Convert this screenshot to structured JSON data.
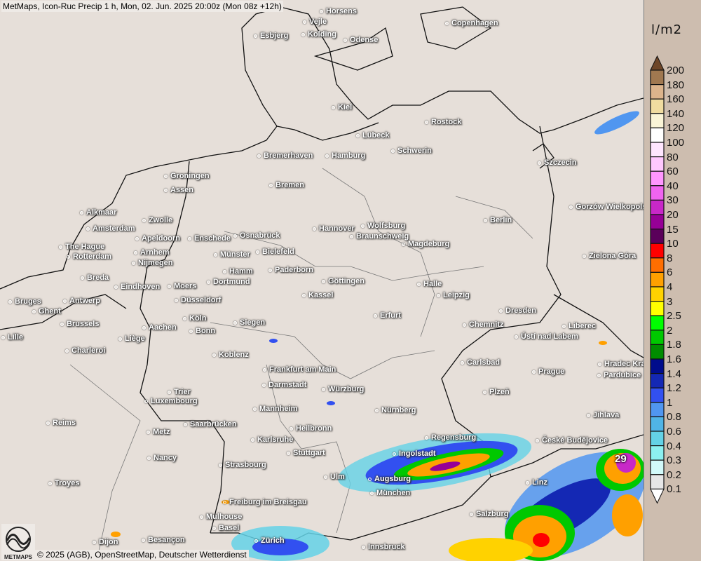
{
  "header": {
    "title": "MetMaps, Icon-Ruc Precip 1 h, Mon, 02. Jun. 2025 20:00z (Mon 08z +12h)"
  },
  "footer": {
    "copyright": "© 2025 (AGB), OpenStreetMap, Deutscher Wetterdienst",
    "logo_text": "METMAPS"
  },
  "map": {
    "max_value_label": "29",
    "cities": [
      "Horsens",
      "Vejle",
      "Kolding",
      "Esbjerg",
      "Odense",
      "Copenhagen",
      "Kiel",
      "Lübeck",
      "Rostock",
      "Schwerin",
      "Bremerhaven",
      "Hamburg",
      "Szczecin",
      "Groningen",
      "Assen",
      "Bremen",
      "Alkmaar",
      "Zwolle",
      "Gorzów Wielkopolski",
      "Amsterdam",
      "Apeldoorn",
      "Enschede",
      "Osnabrück",
      "Hannover",
      "Wolfsburg",
      "Braunschweig",
      "Berlin",
      "The Hague",
      "Rotterdam",
      "Arnhem",
      "Nijmegen",
      "Münster",
      "Bielefeld",
      "Magdeburg",
      "Zielona Góra",
      "Hamm",
      "Paderborn",
      "Dortmund",
      "Breda",
      "Eindhoven",
      "Moers",
      "Göttingen",
      "Halle",
      "Leipzig",
      "Kassel",
      "Bruges",
      "Antwerp",
      "Ghent",
      "Düsseldorf",
      "Dresden",
      "Erfurt",
      "Köln",
      "Brussels",
      "Siegen",
      "Bonn",
      "Chemnitz",
      "Liberec",
      "Aachen",
      "Liège",
      "Lille",
      "Ústí nad Labem",
      "Charleroi",
      "Koblenz",
      "Carlsbad",
      "Hradec Králové",
      "Frankfurt am Main",
      "Prague",
      "Pardubice",
      "Darmstadt",
      "Würzburg",
      "Trier",
      "Plzeň",
      "Luxembourg",
      "Mannheim",
      "Nürnberg",
      "Jihlava",
      "Reims",
      "Saarbrücken",
      "Metz",
      "Heilbronn",
      "Regensburg",
      "České Budějovice",
      "Karlsruhe",
      "Stuttgart",
      "Ingolstadt",
      "Nancy",
      "Strasbourg",
      "Ulm",
      "Augsburg",
      "Linz",
      "Troyes",
      "München",
      "Freiburg im Breisgau",
      "Salzburg",
      "Mulhouse",
      "Basel",
      "Zürich",
      "Innsbruck",
      "Dijon",
      "Besançon"
    ]
  },
  "legend": {
    "unit": "l/m2",
    "labels": [
      "200",
      "180",
      "160",
      "140",
      "120",
      "100",
      "80",
      "60",
      "40",
      "30",
      "20",
      "15",
      "10",
      "8",
      "6",
      "4",
      "3",
      "2.5",
      "2",
      "1.8",
      "1.6",
      "1.4",
      "1.2",
      "1",
      "0.8",
      "0.6",
      "0.4",
      "0.3",
      "0.2",
      "0.1"
    ],
    "colors": [
      "#a07850",
      "#dcb48c",
      "#f0dca0",
      "#faf5d7",
      "#ffffff",
      "#ffe6ff",
      "#ffc8ff",
      "#ff96ff",
      "#f064f0",
      "#c828c8",
      "#960096",
      "#5a005a",
      "#ff0000",
      "#ff6e00",
      "#ffa000",
      "#ffd200",
      "#ffff00",
      "#00ff00",
      "#00c800",
      "#008c00",
      "#000c8c",
      "#1428b4",
      "#3250f0",
      "#5096f0",
      "#50b4e6",
      "#64d2e6",
      "#8cf0f0",
      "#d2fafa",
      "#e6e6e6"
    ],
    "over_color": "#6e4628",
    "under_color": "#ffffff"
  }
}
